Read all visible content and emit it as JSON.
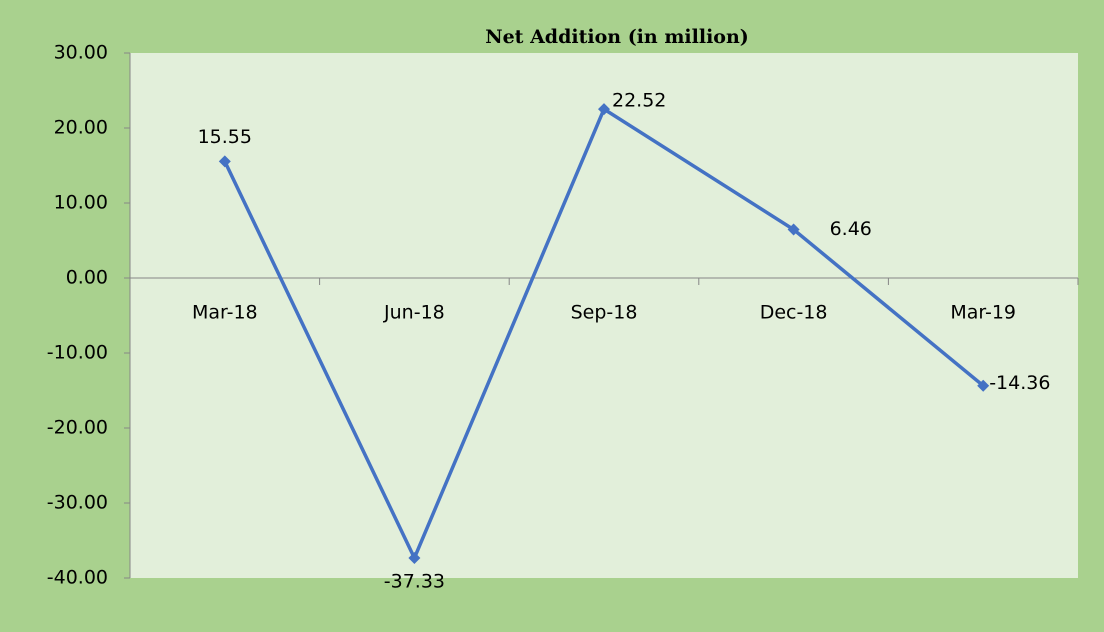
{
  "chart_data": {
    "type": "line",
    "title": "Net Addition (in million)",
    "categories": [
      "Mar-18",
      "Jun-18",
      "Sep-18",
      "Dec-18",
      "Mar-19"
    ],
    "series": [
      {
        "name": "Net Addition",
        "color": "#4472c4",
        "values": [
          15.55,
          -37.33,
          22.52,
          6.46,
          -14.36
        ]
      }
    ],
    "ylim": [
      -40,
      30
    ],
    "yticks": [
      {
        "value": -40,
        "label": "-40.00"
      },
      {
        "value": -30,
        "label": "-30.00"
      },
      {
        "value": -20,
        "label": "-20.00"
      },
      {
        "value": -10,
        "label": "-10.00"
      },
      {
        "value": 0,
        "label": "0.00"
      },
      {
        "value": 10,
        "label": "10.00"
      },
      {
        "value": 20,
        "label": "20.00"
      },
      {
        "value": 30,
        "label": "30.00"
      }
    ],
    "grid": false
  }
}
